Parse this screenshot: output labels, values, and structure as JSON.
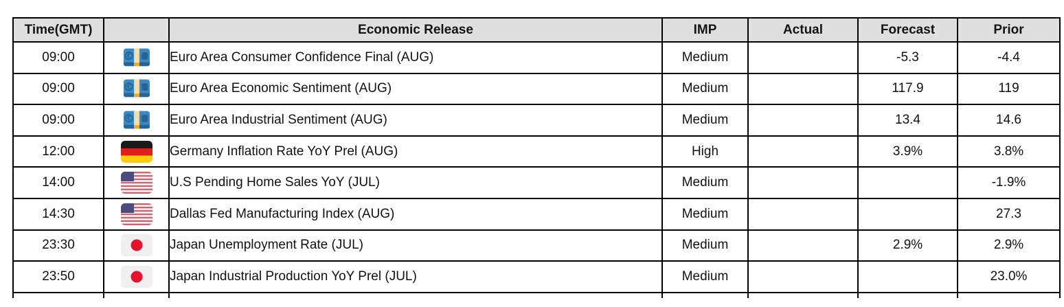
{
  "table": {
    "headers": [
      {
        "key": "time",
        "label": "Time(GMT)"
      },
      {
        "key": "flag",
        "label": ""
      },
      {
        "key": "release",
        "label": "Economic Release"
      },
      {
        "key": "imp",
        "label": "IMP"
      },
      {
        "key": "actual",
        "label": "Actual"
      },
      {
        "key": "forecast",
        "label": "Forecast"
      },
      {
        "key": "prior",
        "label": "Prior"
      }
    ],
    "rows": [
      {
        "time": "09:00",
        "icon": "euro-banknote-icon",
        "region": "Euro Area",
        "release": "Euro Area Consumer Confidence Final (AUG)",
        "imp": "Medium",
        "actual": "",
        "forecast": "-5.3",
        "prior": "-4.4"
      },
      {
        "time": "09:00",
        "icon": "euro-banknote-icon",
        "region": "Euro Area",
        "release": "Euro Area Economic Sentiment (AUG)",
        "imp": "Medium",
        "actual": "",
        "forecast": "117.9",
        "prior": "119"
      },
      {
        "time": "09:00",
        "icon": "euro-banknote-icon",
        "region": "Euro Area",
        "release": "Euro Area Industrial Sentiment (AUG)",
        "imp": "Medium",
        "actual": "",
        "forecast": "13.4",
        "prior": "14.6"
      },
      {
        "time": "12:00",
        "icon": "germany-flag-icon",
        "region": "Germany",
        "release": "Germany Inflation Rate YoY Prel (AUG)",
        "imp": "High",
        "actual": "",
        "forecast": "3.9%",
        "prior": "3.8%"
      },
      {
        "time": "14:00",
        "icon": "us-flag-icon",
        "region": "U.S",
        "release": "U.S Pending Home Sales YoY (JUL)",
        "imp": "Medium",
        "actual": "",
        "forecast": "",
        "prior": "-1.9%"
      },
      {
        "time": "14:30",
        "icon": "us-flag-icon",
        "region": "U.S",
        "release": "Dallas Fed Manufacturing Index (AUG)",
        "imp": "Medium",
        "actual": "",
        "forecast": "",
        "prior": "27.3"
      },
      {
        "time": "23:30",
        "icon": "japan-flag-icon",
        "region": "Japan",
        "release": "Japan Unemployment Rate (JUL)",
        "imp": "Medium",
        "actual": "",
        "forecast": "2.9%",
        "prior": "2.9%"
      },
      {
        "time": "23:50",
        "icon": "japan-flag-icon",
        "region": "Japan",
        "release": "Japan Industrial Production YoY Prel (JUL)",
        "imp": "Medium",
        "actual": "",
        "forecast": "",
        "prior": "23.0%"
      }
    ],
    "colors": {
      "header_bg": "#dfdfdf",
      "grid_border": "#000000",
      "euro_note_blue": "#3B88C3",
      "euro_note_dark": "#226699",
      "euro_stripe": "#F5DFA8",
      "euro_orange": "#F5A623",
      "germany_black": "#1a1a1a",
      "germany_red": "#E31D1C",
      "germany_gold": "#FFCE00",
      "us_canton": "#4B4B7E",
      "us_stripe_red": "#C96870",
      "japan_flag_bg": "#F0F0F0",
      "japan_flag_red": "#E8112D"
    }
  }
}
